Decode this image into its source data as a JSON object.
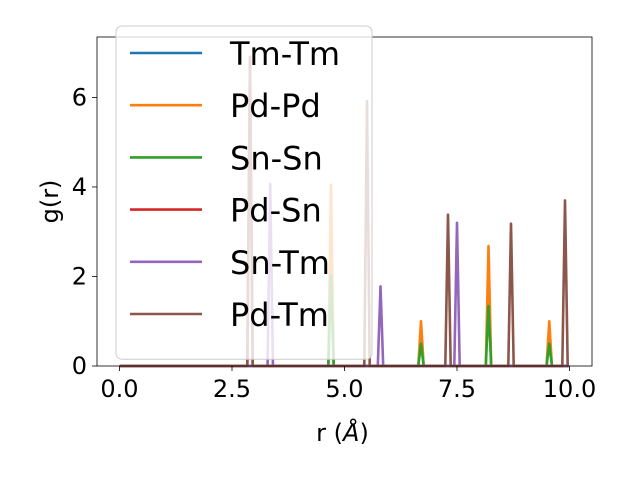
{
  "chart_data": {
    "type": "line",
    "title": "",
    "xlabel": "r (Å)",
    "ylabel": "g(r)",
    "xlim": [
      -0.5,
      10.5
    ],
    "ylim": [
      0,
      7.35
    ],
    "xticks": [
      0.0,
      2.5,
      5.0,
      7.5,
      10.0
    ],
    "xtick_labels": [
      "0.0",
      "2.5",
      "5.0",
      "7.5",
      "10.0"
    ],
    "yticks": [
      0,
      2,
      4,
      6
    ],
    "ytick_labels": [
      "0",
      "2",
      "4",
      "6"
    ],
    "grid": false,
    "legend_position": "upper-left",
    "series": [
      {
        "name": "Tm-Tm",
        "color": "#1f77b4",
        "peaks": []
      },
      {
        "name": "Pd-Pd",
        "color": "#ff7f0e",
        "peaks": [
          [
            4.7,
            4.05
          ],
          [
            6.7,
            1.0
          ],
          [
            8.2,
            2.68
          ],
          [
            9.55,
            1.0
          ]
        ]
      },
      {
        "name": "Sn-Sn",
        "color": "#2ca02c",
        "peaks": [
          [
            4.7,
            2.02
          ],
          [
            6.7,
            0.5
          ],
          [
            8.2,
            1.34
          ],
          [
            9.55,
            0.5
          ]
        ]
      },
      {
        "name": "Pd-Sn",
        "color": "#d62728",
        "peaks": [
          [
            2.9,
            6.9
          ]
        ]
      },
      {
        "name": "Sn-Tm",
        "color": "#9467bd",
        "peaks": [
          [
            3.35,
            4.07
          ],
          [
            5.8,
            1.78
          ],
          [
            7.5,
            3.2
          ]
        ]
      },
      {
        "name": "Pd-Tm",
        "color": "#8c564b",
        "peaks": [
          [
            2.9,
            6.9
          ],
          [
            5.5,
            5.92
          ],
          [
            7.3,
            3.38
          ],
          [
            8.7,
            3.18
          ],
          [
            9.9,
            3.7
          ]
        ]
      }
    ]
  }
}
